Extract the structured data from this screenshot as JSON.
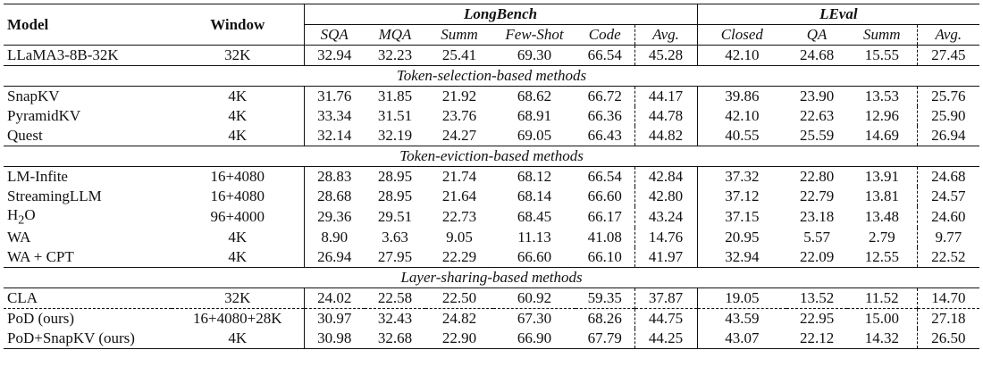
{
  "header": {
    "model": "Model",
    "window": "Window",
    "longbench": "LongBench",
    "leval": "LEval",
    "longbench_cols": [
      "SQA",
      "MQA",
      "Summ",
      "Few-Shot",
      "Code",
      "Avg."
    ],
    "leval_cols": [
      "Closed",
      "QA",
      "Summ",
      "Avg."
    ]
  },
  "baseline": {
    "model": "LLaMA3-8B-32K",
    "window": "32K",
    "values": [
      "32.94",
      "32.23",
      "25.41",
      "69.30",
      "66.54",
      "45.28",
      "42.10",
      "24.68",
      "15.55",
      "27.45"
    ]
  },
  "sections": [
    {
      "title": "Token-selection-based methods",
      "rows": [
        {
          "model": "SnapKV",
          "window": "4K",
          "values": [
            "31.76",
            "31.85",
            "21.92",
            "68.62",
            "66.72",
            "44.17",
            "39.86",
            "23.90",
            "13.53",
            "25.76"
          ]
        },
        {
          "model": "PyramidKV",
          "window": "4K",
          "values": [
            "33.34",
            "31.51",
            "23.76",
            "68.91",
            "66.36",
            "44.78",
            "42.10",
            "22.63",
            "12.96",
            "25.90"
          ]
        },
        {
          "model": "Quest",
          "window": "4K",
          "values": [
            "32.14",
            "32.19",
            "24.27",
            "69.05",
            "66.43",
            "44.82",
            "40.55",
            "25.59",
            "14.69",
            "26.94"
          ]
        }
      ]
    },
    {
      "title": "Token-eviction-based methods",
      "rows": [
        {
          "model": "LM-Infite",
          "window": "16+4080",
          "values": [
            "28.83",
            "28.95",
            "21.74",
            "68.12",
            "66.54",
            "42.84",
            "37.32",
            "22.80",
            "13.91",
            "24.68"
          ]
        },
        {
          "model": "StreamingLLM",
          "window": "16+4080",
          "values": [
            "28.68",
            "28.95",
            "21.64",
            "68.14",
            "66.60",
            "42.80",
            "37.12",
            "22.79",
            "13.81",
            "24.57"
          ]
        },
        {
          "model": "H",
          "model_sub": "2",
          "model_tail": "O",
          "window": "96+4000",
          "values": [
            "29.36",
            "29.51",
            "22.73",
            "68.45",
            "66.17",
            "43.24",
            "37.15",
            "23.18",
            "13.48",
            "24.60"
          ]
        },
        {
          "model": "WA",
          "window": "4K",
          "values": [
            "8.90",
            "3.63",
            "9.05",
            "11.13",
            "41.08",
            "14.76",
            "20.95",
            "5.57",
            "2.79",
            "9.77"
          ]
        },
        {
          "model": "WA + CPT",
          "window": "4K",
          "values": [
            "26.94",
            "27.95",
            "22.29",
            "66.60",
            "66.10",
            "41.97",
            "32.94",
            "22.09",
            "12.55",
            "22.52"
          ]
        }
      ]
    },
    {
      "title": "Layer-sharing-based methods",
      "rows": [
        {
          "model": "CLA",
          "window": "32K",
          "values": [
            "24.02",
            "22.58",
            "22.50",
            "60.92",
            "59.35",
            "37.87",
            "19.05",
            "13.52",
            "11.52",
            "14.70"
          ]
        }
      ]
    }
  ],
  "ours": [
    {
      "model": "PoD (ours)",
      "window": "16+4080+28K",
      "values": [
        "30.97",
        "32.43",
        "24.82",
        "67.30",
        "68.26",
        "44.75",
        "43.59",
        "22.95",
        "15.00",
        "27.18"
      ]
    },
    {
      "model": "PoD+SnapKV (ours)",
      "window": "4K",
      "values": [
        "30.98",
        "32.68",
        "22.90",
        "66.90",
        "67.79",
        "44.25",
        "43.07",
        "22.12",
        "14.32",
        "26.50"
      ]
    }
  ]
}
